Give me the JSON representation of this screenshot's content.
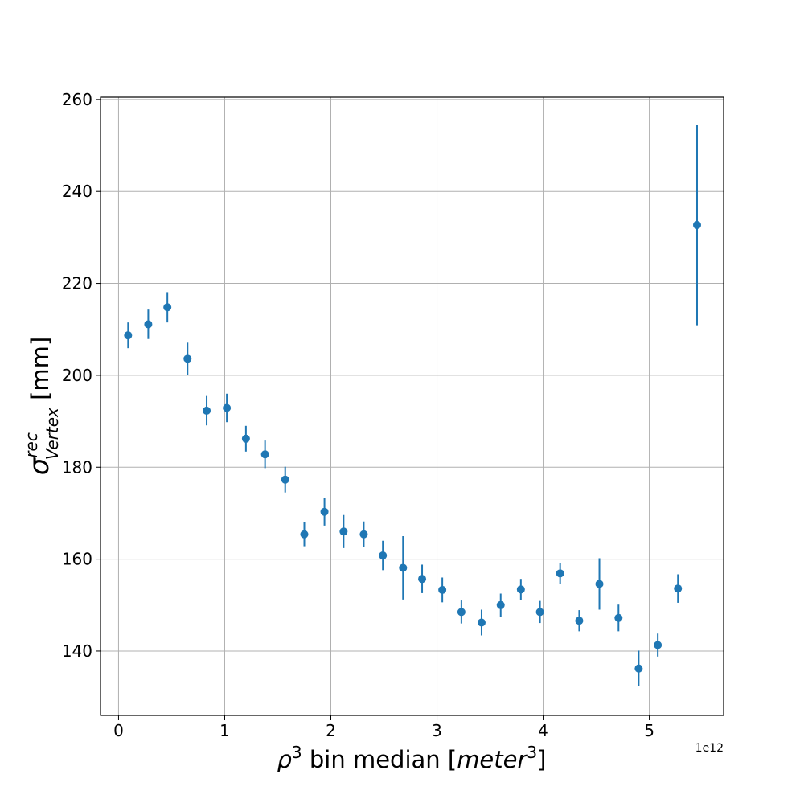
{
  "chart_data": {
    "type": "scatter",
    "xlabel": "ρ³ bin median [meter³]",
    "ylabel": "σ^rec_Vertex [mm]",
    "x_offset_label": "1e12",
    "x_scale_factor": 1000000000000.0,
    "xlim": [
      -170000000000.0,
      5700000000000.0
    ],
    "ylim": [
      126,
      260.5
    ],
    "x_ticks": [
      0,
      1000000000000.0,
      2000000000000.0,
      3000000000000.0,
      4000000000000.0,
      5000000000000.0
    ],
    "x_tick_labels": [
      "0",
      "1",
      "2",
      "3",
      "4",
      "5"
    ],
    "y_ticks": [
      140,
      160,
      180,
      200,
      220,
      240,
      260
    ],
    "y_tick_labels": [
      "140",
      "160",
      "180",
      "200",
      "220",
      "240",
      "260"
    ],
    "grid": true,
    "color": "#1f77b4",
    "series": [
      {
        "x": [
          90000000000.0,
          280000000000.0,
          460000000000.0,
          650000000000.0,
          830000000000.0,
          1020000000000.0,
          1200000000000.0,
          1380000000000.0,
          1570000000000.0,
          1750000000000.0,
          1940000000000.0,
          2120000000000.0,
          2310000000000.0,
          2490000000000.0,
          2680000000000.0,
          2860000000000.0,
          3050000000000.0,
          3230000000000.0,
          3420000000000.0,
          3600000000000.0,
          3790000000000.0,
          3970000000000.0,
          4160000000000.0,
          4340000000000.0,
          4530000000000.0,
          4710000000000.0,
          4900000000000.0,
          5080000000000.0,
          5270000000000.0,
          5450000000000.0
        ],
        "y": [
          208.7,
          211.1,
          214.8,
          203.6,
          192.3,
          192.9,
          186.2,
          182.8,
          177.3,
          165.4,
          170.3,
          166.0,
          165.4,
          160.8,
          158.1,
          155.7,
          153.3,
          148.5,
          146.2,
          150.0,
          153.4,
          148.5,
          156.9,
          146.6,
          154.6,
          147.2,
          136.2,
          141.3,
          153.6,
          232.7
        ],
        "yerr": [
          2.8,
          3.2,
          3.3,
          3.5,
          3.2,
          3.1,
          2.8,
          3.0,
          2.8,
          2.6,
          3.0,
          3.6,
          2.8,
          3.2,
          6.9,
          3.1,
          2.7,
          2.5,
          2.8,
          2.5,
          2.3,
          2.4,
          2.3,
          2.3,
          5.6,
          2.9,
          3.9,
          2.5,
          3.1,
          21.8
        ]
      }
    ]
  }
}
